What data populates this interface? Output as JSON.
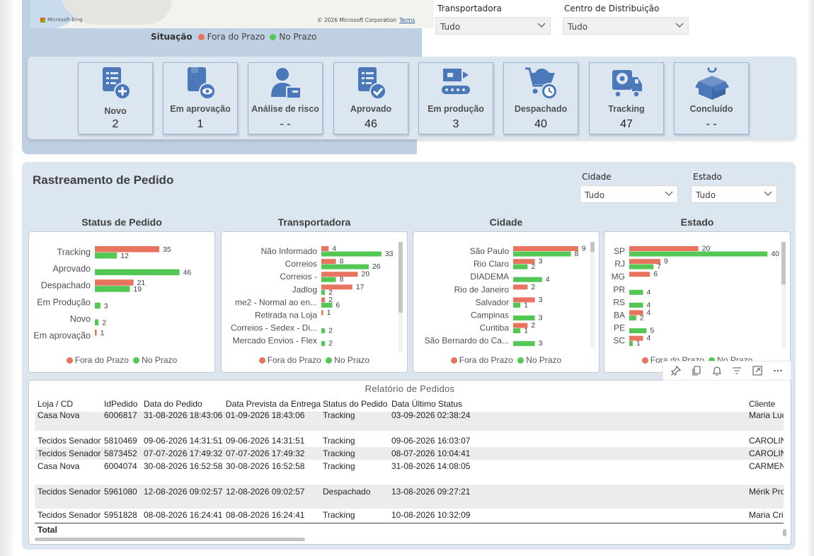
{
  "map": {
    "provider": "Microsoft Bing",
    "copyright": "© 2026 Microsoft Corporation",
    "terms": "Terms",
    "legend_title": "Situação",
    "legend_items": [
      {
        "label": "Fora do Prazo",
        "color": "#e8735f"
      },
      {
        "label": "No Prazo",
        "color": "#53c653"
      }
    ]
  },
  "top_slicers": [
    {
      "label": "Transportadora",
      "value": "Tudo"
    },
    {
      "label": "Centro de Distribuição",
      "value": "Tudo"
    }
  ],
  "status_cards": [
    {
      "label": "Novo",
      "value": "2",
      "icon": "new-document-icon"
    },
    {
      "label": "Em aprovação",
      "value": "1",
      "icon": "document-review-icon"
    },
    {
      "label": "Análise de risco",
      "value": "- -",
      "icon": "risk-analysis-person-icon"
    },
    {
      "label": "Aprovado",
      "value": "46",
      "icon": "approved-document-icon"
    },
    {
      "label": "Em produção",
      "value": "3",
      "icon": "production-conveyor-icon"
    },
    {
      "label": "Despachado",
      "value": "40",
      "icon": "dispatch-cart-icon"
    },
    {
      "label": "Tracking",
      "value": "47",
      "icon": "tracking-truck-icon"
    },
    {
      "label": "Concluído",
      "value": "- -",
      "icon": "open-box-icon"
    }
  ],
  "rastreamento": {
    "title": "Rastreamento de Pedido",
    "slicers": [
      {
        "label": "Cidade",
        "value": "Tudo"
      },
      {
        "label": "Estado",
        "value": "Tudo"
      }
    ]
  },
  "legend": {
    "fora": "Fora do Prazo",
    "no": "No Prazo",
    "fora_color": "#e8735f",
    "no_color": "#53c653"
  },
  "chart_data": [
    {
      "type": "bar",
      "title": "Status de Pedido",
      "orientation": "horizontal",
      "categories": [
        "Tracking",
        "Aprovado",
        "Despachado",
        "Em Produção",
        "Novo",
        "Em aprovação"
      ],
      "series": [
        {
          "name": "Fora do Prazo",
          "values": [
            35,
            null,
            21,
            null,
            null,
            1
          ]
        },
        {
          "name": "No Prazo",
          "values": [
            12,
            46,
            19,
            3,
            2,
            null
          ]
        }
      ],
      "xlim": [
        0,
        50
      ],
      "legend": "bottom"
    },
    {
      "type": "bar",
      "title": "Transportadora",
      "orientation": "horizontal",
      "categories": [
        "Não Informado",
        "Correios",
        "Correios -",
        "Jadlog",
        "me2 - Normal ao en...",
        "Retirada na Loja",
        "Correios - Sedex - Di...",
        "Mercado Envios - Flex"
      ],
      "series": [
        {
          "name": "Fora do Prazo",
          "values": [
            4,
            8,
            20,
            17,
            2,
            1,
            null,
            null
          ]
        },
        {
          "name": "No Prazo",
          "values": [
            33,
            26,
            8,
            2,
            6,
            null,
            2,
            2
          ]
        }
      ],
      "xlim": [
        0,
        35
      ],
      "legend": "bottom"
    },
    {
      "type": "bar",
      "title": "Cidade",
      "orientation": "horizontal",
      "categories": [
        "São Paulo",
        "Rio Claro",
        "DIADEMA",
        "Rio de Janeiro",
        "Salvador",
        "Campinas",
        "Curitiba",
        "São Bernardo do Ca..."
      ],
      "series": [
        {
          "name": "Fora do Prazo",
          "values": [
            9,
            3,
            null,
            2,
            3,
            null,
            2,
            null
          ]
        },
        {
          "name": "No Prazo",
          "values": [
            8,
            2,
            4,
            null,
            1,
            3,
            1,
            3
          ]
        }
      ],
      "xlim": [
        0,
        10
      ],
      "legend": "bottom"
    },
    {
      "type": "bar",
      "title": "Estado",
      "orientation": "horizontal",
      "categories": [
        "SP",
        "RJ",
        "MG",
        "PR",
        "RS",
        "BA",
        "PE",
        "SC"
      ],
      "series": [
        {
          "name": "Fora do Prazo",
          "values": [
            20,
            9,
            6,
            null,
            null,
            4,
            null,
            4
          ]
        },
        {
          "name": "No Prazo",
          "values": [
            40,
            7,
            null,
            4,
            4,
            2,
            5,
            1
          ]
        }
      ],
      "xlim": [
        0,
        42
      ],
      "legend": "bottom"
    }
  ],
  "table": {
    "title": "Relatório de Pedidos",
    "columns": [
      "Loja / CD",
      "IdPedido",
      "Data do Pedido",
      "Data Prevista da Entrega",
      "Status do Pedido",
      "Data Último Status",
      "Cliente"
    ],
    "rows": [
      [
        "Casa Nova",
        "6006817",
        "31-08-2026 18:43:06",
        "01-09-2026 18:43:06",
        "Tracking",
        "03-09-2026 02:38:24",
        "Maria Luc"
      ],
      [
        "Tecidos Senador",
        "5810469",
        "09-06-2026 14:31:51",
        "09-06-2026 14:31:51",
        "Tracking",
        "09-06-2026 16:03:07",
        "CAROLIN"
      ],
      [
        "Tecidos Senador",
        "5873452",
        "07-07-2026 17:49:32",
        "07-07-2026 17:49:32",
        "Tracking",
        "08-07-2026 10:04:41",
        "CAROLIN"
      ],
      [
        "Casa Nova",
        "6004074",
        "30-08-2026 16:52:58",
        "30-08-2026 16:52:58",
        "Tracking",
        "31-08-2026 14:08:05",
        "CARMEN"
      ],
      [
        "Tecidos Senador",
        "5961080",
        "12-08-2026 09:02:57",
        "12-08-2026 09:02:57",
        "Despachado",
        "13-08-2026 09:27:21",
        "Mérik Pro"
      ],
      [
        "Tecidos Senador",
        "5951828",
        "08-08-2026 16:24:41",
        "08-08-2026 16:24:41",
        "Tracking",
        "10-08-2026 10:32:09",
        "Maria Cri"
      ]
    ],
    "total_label": "Total"
  },
  "toolbar_icons": [
    "pin-icon",
    "copy-icon",
    "bell-icon",
    "filter-icon",
    "focus-mode-icon",
    "more-options-icon"
  ]
}
